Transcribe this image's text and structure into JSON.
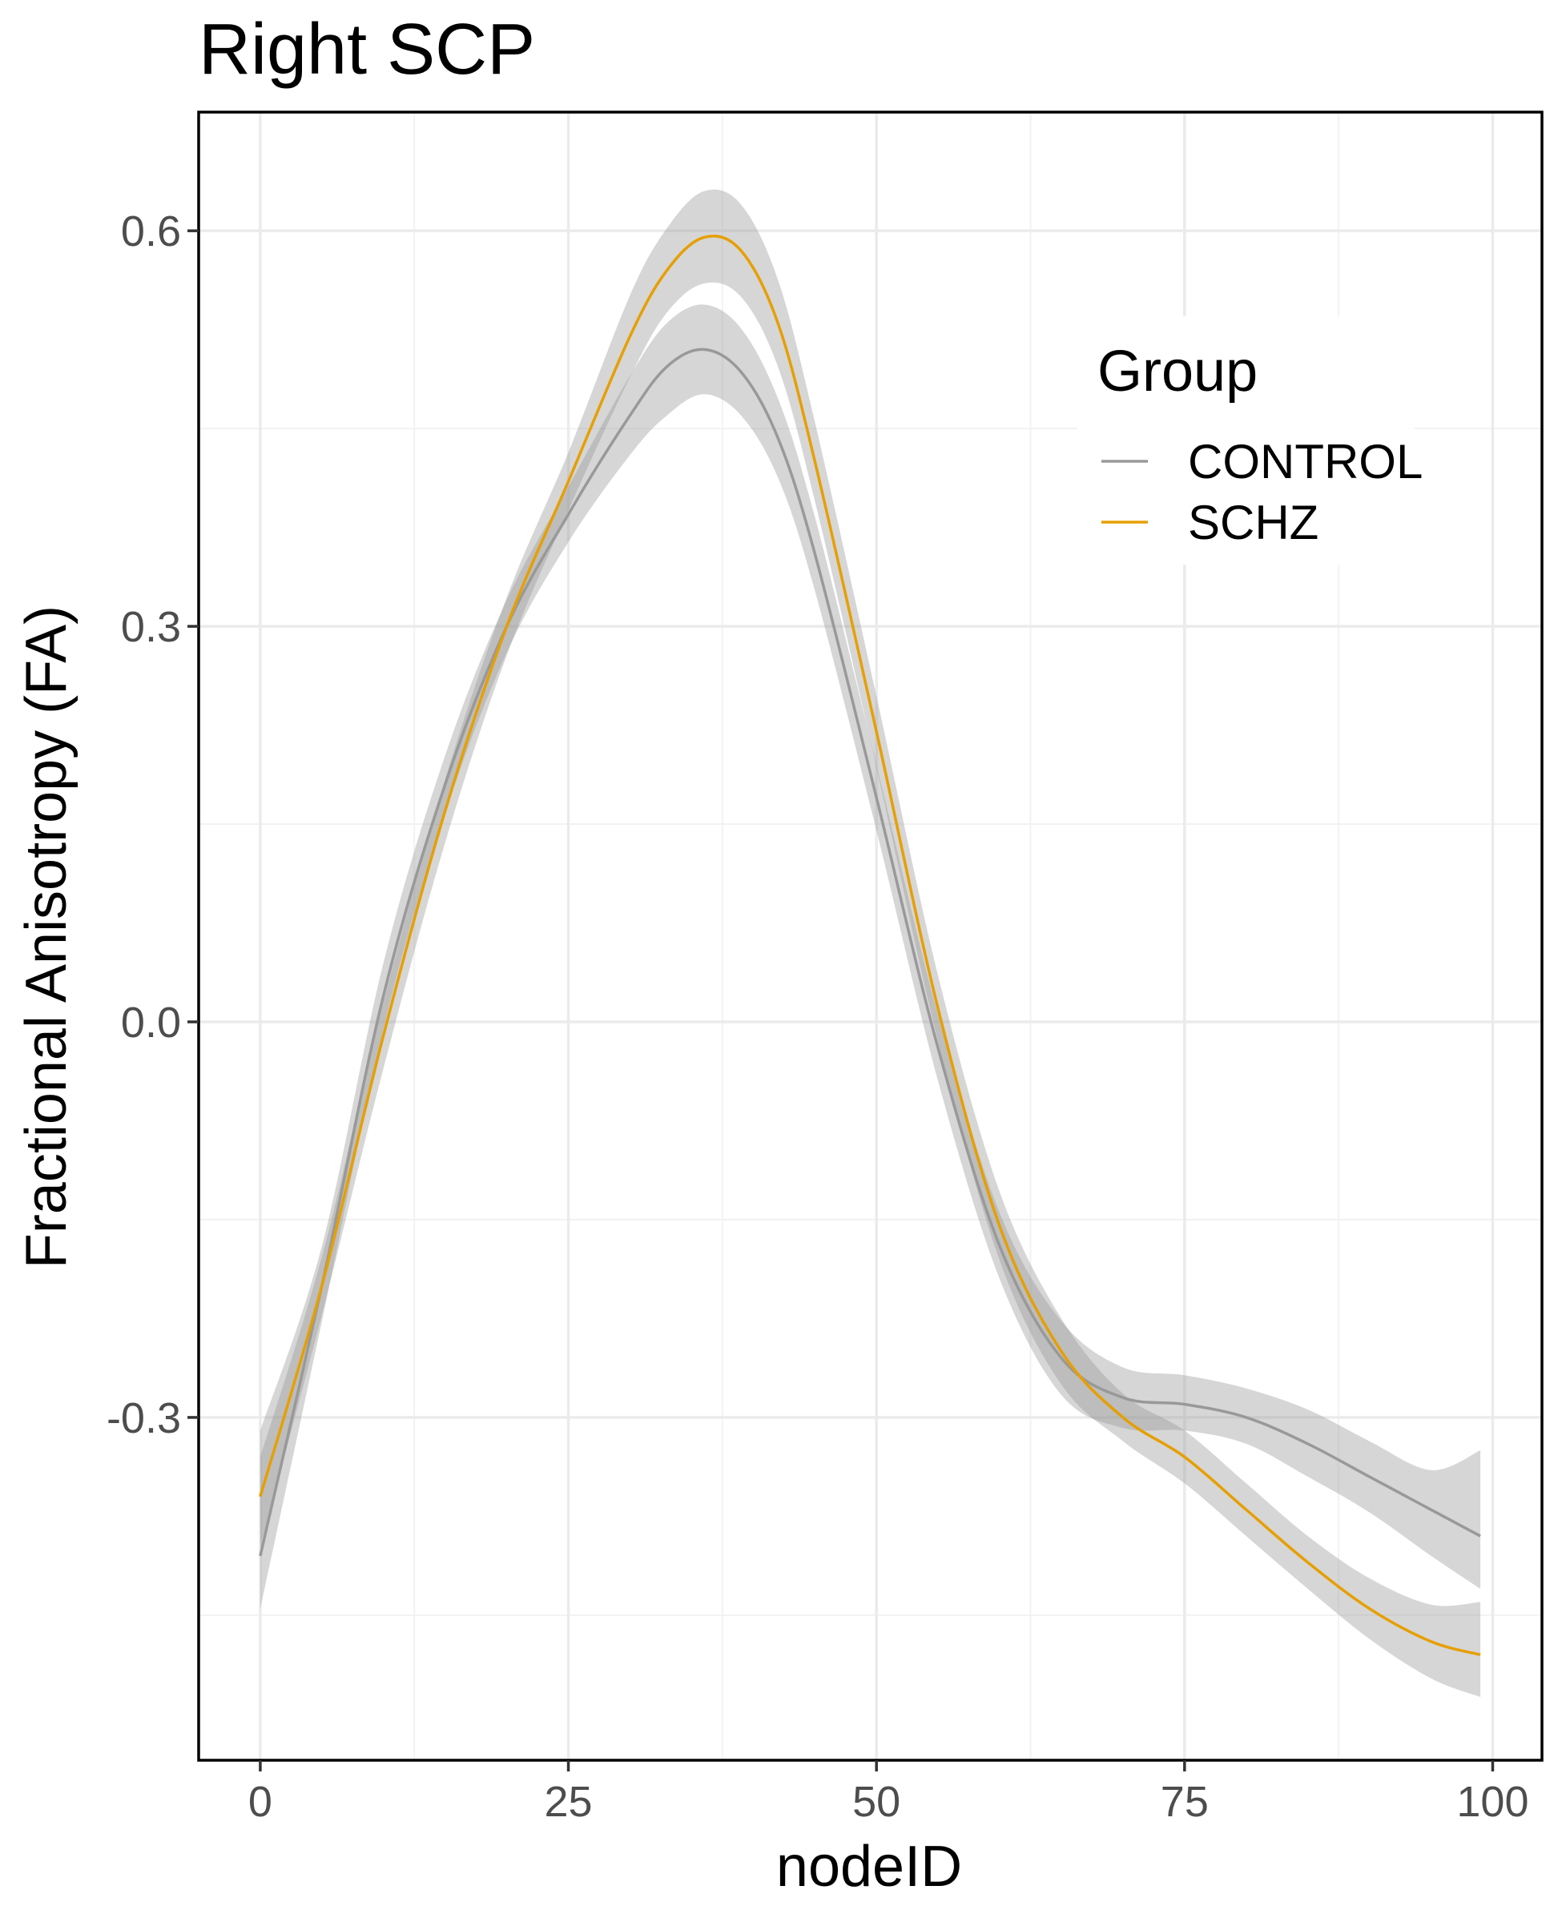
{
  "chart_data": {
    "type": "line",
    "title": "Right SCP",
    "xlabel": "nodeID",
    "ylabel": "Fractional Anisotropy (FA)",
    "xlim": [
      -5,
      104
    ],
    "ylim": [
      -0.56,
      0.69
    ],
    "x_ticks": [
      0,
      25,
      50,
      75,
      100
    ],
    "x_tick_labels": [
      "0",
      "25",
      "50",
      "75",
      "100"
    ],
    "y_ticks": [
      -0.3,
      0.0,
      0.3,
      0.6
    ],
    "y_tick_labels": [
      "-0.3",
      "0.0",
      "0.3",
      "0.6"
    ],
    "grid": true,
    "legend": {
      "title": "Group",
      "placement": "top-right"
    },
    "series": [
      {
        "name": "CONTROL",
        "color": "#999999",
        "x": [
          0,
          5,
          10,
          15,
          20,
          25,
          30,
          33,
          36,
          39,
          42,
          45,
          50,
          55,
          60,
          65,
          70,
          75,
          80,
          85,
          90,
          95,
          99
        ],
        "y": [
          -0.405,
          -0.2,
          0.02,
          0.18,
          0.3,
          0.385,
          0.46,
          0.497,
          0.51,
          0.493,
          0.443,
          0.355,
          0.17,
          -0.02,
          -0.17,
          -0.255,
          -0.285,
          -0.29,
          -0.3,
          -0.32,
          -0.345,
          -0.37,
          -0.39
        ],
        "lower": [
          -0.445,
          -0.227,
          -0.005,
          0.158,
          0.28,
          0.364,
          0.43,
          0.46,
          0.476,
          0.46,
          0.413,
          0.327,
          0.145,
          -0.045,
          -0.195,
          -0.283,
          -0.308,
          -0.31,
          -0.32,
          -0.345,
          -0.372,
          -0.405,
          -0.43
        ],
        "upper": [
          -0.31,
          -0.17,
          0.045,
          0.202,
          0.32,
          0.406,
          0.49,
          0.53,
          0.544,
          0.526,
          0.473,
          0.383,
          0.195,
          0.005,
          -0.145,
          -0.227,
          -0.262,
          -0.268,
          -0.278,
          -0.294,
          -0.318,
          -0.34,
          -0.325
        ]
      },
      {
        "name": "SCHZ",
        "color": "#E69F00",
        "x": [
          0,
          5,
          10,
          15,
          20,
          25,
          30,
          33,
          36,
          39,
          42,
          45,
          50,
          55,
          60,
          65,
          70,
          75,
          80,
          85,
          90,
          95,
          99
        ],
        "y": [
          -0.36,
          -0.2,
          -0.01,
          0.16,
          0.3,
          0.41,
          0.52,
          0.57,
          0.595,
          0.585,
          0.53,
          0.425,
          0.22,
          0.01,
          -0.155,
          -0.25,
          -0.3,
          -0.33,
          -0.37,
          -0.41,
          -0.445,
          -0.47,
          -0.48
        ],
        "lower": [
          -0.398,
          -0.222,
          -0.035,
          0.136,
          0.278,
          0.388,
          0.489,
          0.538,
          0.56,
          0.55,
          0.497,
          0.395,
          0.193,
          -0.015,
          -0.181,
          -0.275,
          -0.318,
          -0.35,
          -0.39,
          -0.43,
          -0.468,
          -0.498,
          -0.512
        ],
        "upper": [
          -0.33,
          -0.178,
          0.015,
          0.184,
          0.322,
          0.432,
          0.551,
          0.602,
          0.63,
          0.62,
          0.563,
          0.455,
          0.247,
          0.035,
          -0.129,
          -0.225,
          -0.282,
          -0.31,
          -0.35,
          -0.39,
          -0.422,
          -0.442,
          -0.44
        ]
      }
    ]
  }
}
